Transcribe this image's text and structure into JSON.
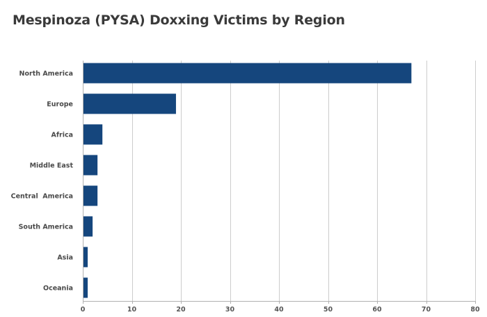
{
  "chart_data": {
    "type": "bar",
    "orientation": "horizontal",
    "title": "Mespinoza (PYSA) Doxxing Victims by Region",
    "categories": [
      "North America",
      "Europe",
      "Africa",
      "Middle East",
      "Central  America",
      "South America",
      "Asia",
      "Oceania"
    ],
    "values": [
      67,
      19,
      4,
      3,
      3,
      2,
      1,
      1
    ],
    "xticks": [
      0,
      10,
      20,
      30,
      40,
      50,
      60,
      70,
      80
    ],
    "xlim": [
      0,
      80
    ],
    "xlabel": "",
    "ylabel": "",
    "grid": "vertical",
    "bar_color": "#15467d"
  }
}
